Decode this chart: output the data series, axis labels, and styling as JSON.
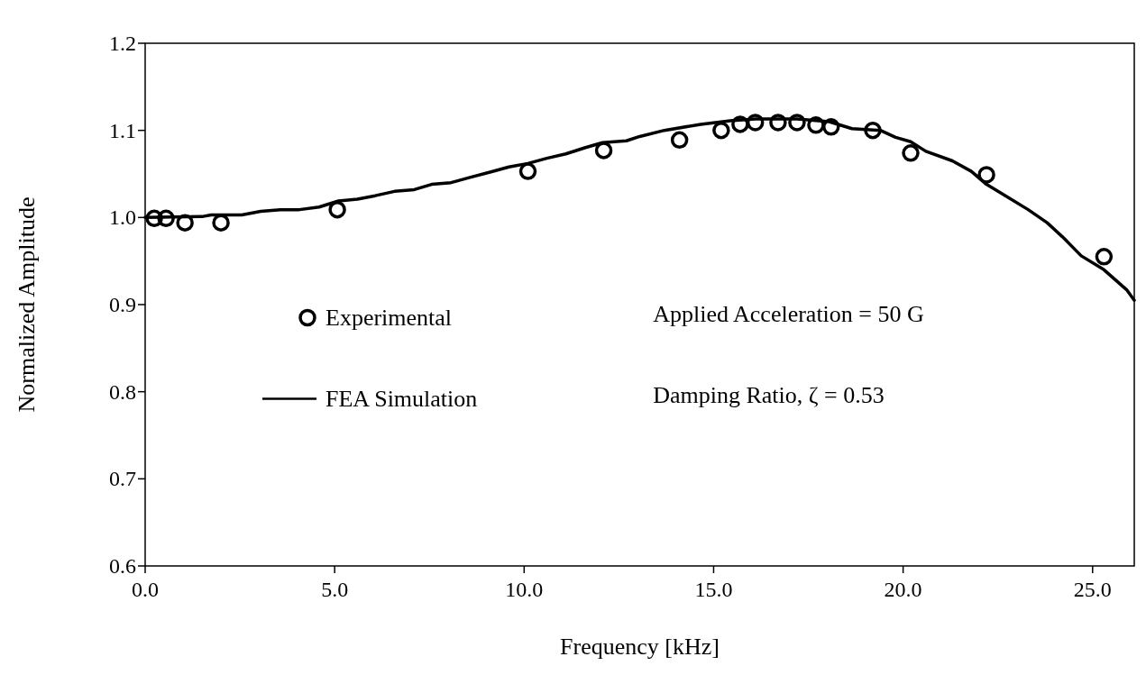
{
  "chart_data": {
    "type": "line",
    "xlabel": "Frequency [kHz]",
    "ylabel": "Normalized Amplitude",
    "xlim": [
      0,
      26.1
    ],
    "xticks": [
      {
        "value": 0,
        "label": "0.0"
      },
      {
        "value": 5,
        "label": "5.0"
      },
      {
        "value": 10,
        "label": "10.0"
      },
      {
        "value": 15,
        "label": "15.0"
      },
      {
        "value": 20,
        "label": "20.0"
      },
      {
        "value": 25,
        "label": "25.0"
      }
    ],
    "ylim": [
      0.6,
      1.2
    ],
    "yticks": [
      0.6,
      0.7,
      0.8,
      0.9,
      {
        "value": 1,
        "label": "1.0"
      },
      1.1,
      1.2
    ],
    "grid": false,
    "legend": "left",
    "annotations": [
      "Applied Acceleration = 50 G",
      "Damping Ratio, ζ = 0.53"
    ],
    "series": [
      {
        "name": "Experimental",
        "type": "scatter",
        "marker": "circle",
        "color": "#000000",
        "x": [
          0.24,
          0.55,
          1.05,
          2.0,
          5.07,
          10.1,
          12.1,
          14.1,
          15.2,
          15.7,
          16.1,
          16.7,
          17.2,
          17.7,
          18.1,
          19.2,
          20.2,
          22.2,
          25.3
        ],
        "values": [
          0.999,
          0.999,
          0.994,
          0.994,
          1.009,
          1.053,
          1.077,
          1.089,
          1.1,
          1.107,
          1.109,
          1.109,
          1.109,
          1.106,
          1.104,
          1.1,
          1.074,
          1.049,
          0.955
        ]
      },
      {
        "name": "FEA Simulation",
        "marker": "none",
        "line_style": "solid",
        "color": "#000000",
        "x": [
          0,
          1.5,
          1.74,
          2.55,
          3.05,
          3.57,
          4.07,
          4.59,
          5.1,
          5.6,
          6.07,
          6.58,
          7.1,
          7.56,
          8.07,
          8.57,
          9.1,
          9.6,
          10.1,
          10.6,
          11.1,
          11.6,
          12.07,
          12.7,
          13.05,
          13.7,
          14.66,
          15.44,
          16.1,
          17.2,
          18.05,
          18.65,
          19.4,
          19.8,
          20.2,
          20.6,
          21.3,
          21.8,
          22.2,
          22.7,
          23.3,
          23.8,
          24.2,
          24.7,
          25.3,
          25.9,
          26.1
        ],
        "values": [
          1.0,
          1.001,
          1.003,
          1.003,
          1.007,
          1.009,
          1.009,
          1.012,
          1.019,
          1.021,
          1.025,
          1.03,
          1.032,
          1.038,
          1.04,
          1.046,
          1.052,
          1.058,
          1.062,
          1.068,
          1.073,
          1.08,
          1.086,
          1.088,
          1.093,
          1.1,
          1.107,
          1.111,
          1.113,
          1.113,
          1.11,
          1.102,
          1.1,
          1.092,
          1.087,
          1.076,
          1.065,
          1.053,
          1.038,
          1.025,
          1.009,
          0.994,
          0.978,
          0.956,
          0.94,
          0.917,
          0.905
        ]
      }
    ]
  }
}
